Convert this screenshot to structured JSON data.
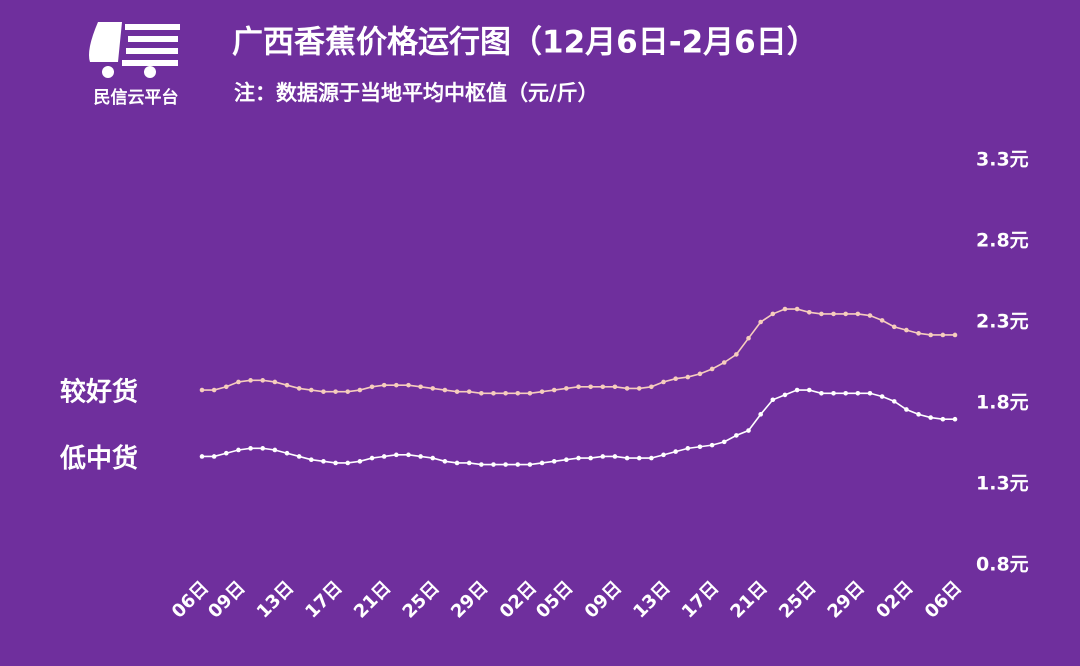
{
  "brand": "民信云平台",
  "chart_data": {
    "type": "line",
    "title": "广西香蕉价格运行图（12月6日-2月6日）",
    "subtitle": "注：数据源于当地平均中枢值（元/斤）",
    "categories": [
      "06日",
      null,
      null,
      "09日",
      null,
      null,
      null,
      "13日",
      null,
      null,
      null,
      "17日",
      null,
      null,
      null,
      "21日",
      null,
      null,
      null,
      "25日",
      null,
      null,
      null,
      "29日",
      null,
      null,
      null,
      "02日",
      null,
      null,
      "05日",
      null,
      null,
      null,
      "09日",
      null,
      null,
      null,
      "13日",
      null,
      null,
      null,
      "17日",
      null,
      null,
      null,
      "21日",
      null,
      null,
      null,
      "25日",
      null,
      null,
      null,
      "29日",
      null,
      null,
      null,
      "02日",
      null,
      null,
      null,
      "06日"
    ],
    "series": [
      {
        "name": "较好货",
        "color": "#f6cdbd",
        "values": [
          1.88,
          1.88,
          1.9,
          1.93,
          1.94,
          1.94,
          1.93,
          1.91,
          1.89,
          1.88,
          1.87,
          1.87,
          1.87,
          1.88,
          1.9,
          1.91,
          1.91,
          1.91,
          1.9,
          1.89,
          1.88,
          1.87,
          1.87,
          1.86,
          1.86,
          1.86,
          1.86,
          1.86,
          1.87,
          1.88,
          1.89,
          1.9,
          1.9,
          1.9,
          1.9,
          1.89,
          1.89,
          1.9,
          1.93,
          1.95,
          1.96,
          1.98,
          2.01,
          2.05,
          2.1,
          2.2,
          2.3,
          2.35,
          2.38,
          2.38,
          2.36,
          2.35,
          2.35,
          2.35,
          2.35,
          2.34,
          2.31,
          2.27,
          2.25,
          2.23,
          2.22,
          2.22,
          2.22
        ]
      },
      {
        "name": "低中货",
        "color": "#ffffff",
        "values": [
          1.47,
          1.47,
          1.49,
          1.51,
          1.52,
          1.52,
          1.51,
          1.49,
          1.47,
          1.45,
          1.44,
          1.43,
          1.43,
          1.44,
          1.46,
          1.47,
          1.48,
          1.48,
          1.47,
          1.46,
          1.44,
          1.43,
          1.43,
          1.42,
          1.42,
          1.42,
          1.42,
          1.42,
          1.43,
          1.44,
          1.45,
          1.46,
          1.46,
          1.47,
          1.47,
          1.46,
          1.46,
          1.46,
          1.48,
          1.5,
          1.52,
          1.53,
          1.54,
          1.56,
          1.6,
          1.63,
          1.73,
          1.82,
          1.85,
          1.88,
          1.88,
          1.86,
          1.86,
          1.86,
          1.86,
          1.86,
          1.84,
          1.81,
          1.76,
          1.73,
          1.71,
          1.7,
          1.7
        ]
      }
    ],
    "ylim": [
      0.8,
      3.3
    ],
    "yticks": [
      {
        "value": 0.8,
        "label": "0.8元"
      },
      {
        "value": 1.3,
        "label": "1.3元"
      },
      {
        "value": 1.8,
        "label": "1.8元"
      },
      {
        "value": 2.3,
        "label": "2.3元"
      },
      {
        "value": 2.8,
        "label": "2.8元"
      },
      {
        "value": 3.3,
        "label": "3.3元"
      }
    ]
  }
}
